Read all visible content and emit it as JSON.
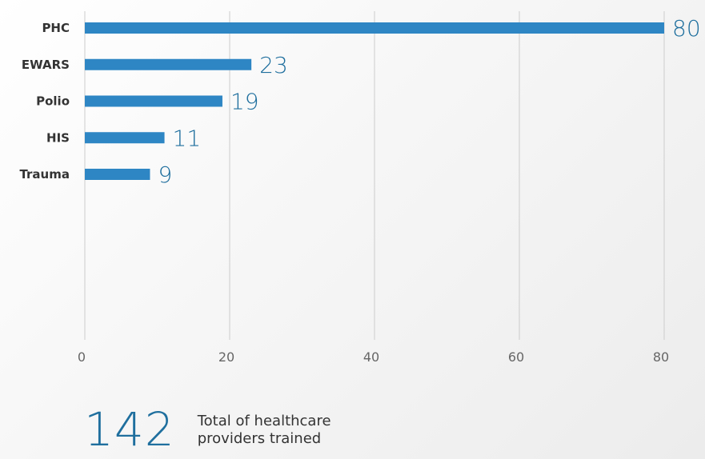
{
  "chart_data": {
    "type": "bar",
    "orientation": "horizontal",
    "categories": [
      "PHC",
      "EWARS",
      "Polio",
      "HIS",
      "Trauma"
    ],
    "values": [
      80,
      23,
      19,
      11,
      9
    ],
    "xlim": [
      0,
      80
    ],
    "xticks": [
      "0",
      "20",
      "40",
      "60",
      "80"
    ],
    "grid": true,
    "bar_color": "#2e86c4",
    "label_color": "#1f6f9e"
  },
  "summary": {
    "total": "142",
    "caption_line1": "Total of healthcare",
    "caption_line2": "providers trained"
  }
}
